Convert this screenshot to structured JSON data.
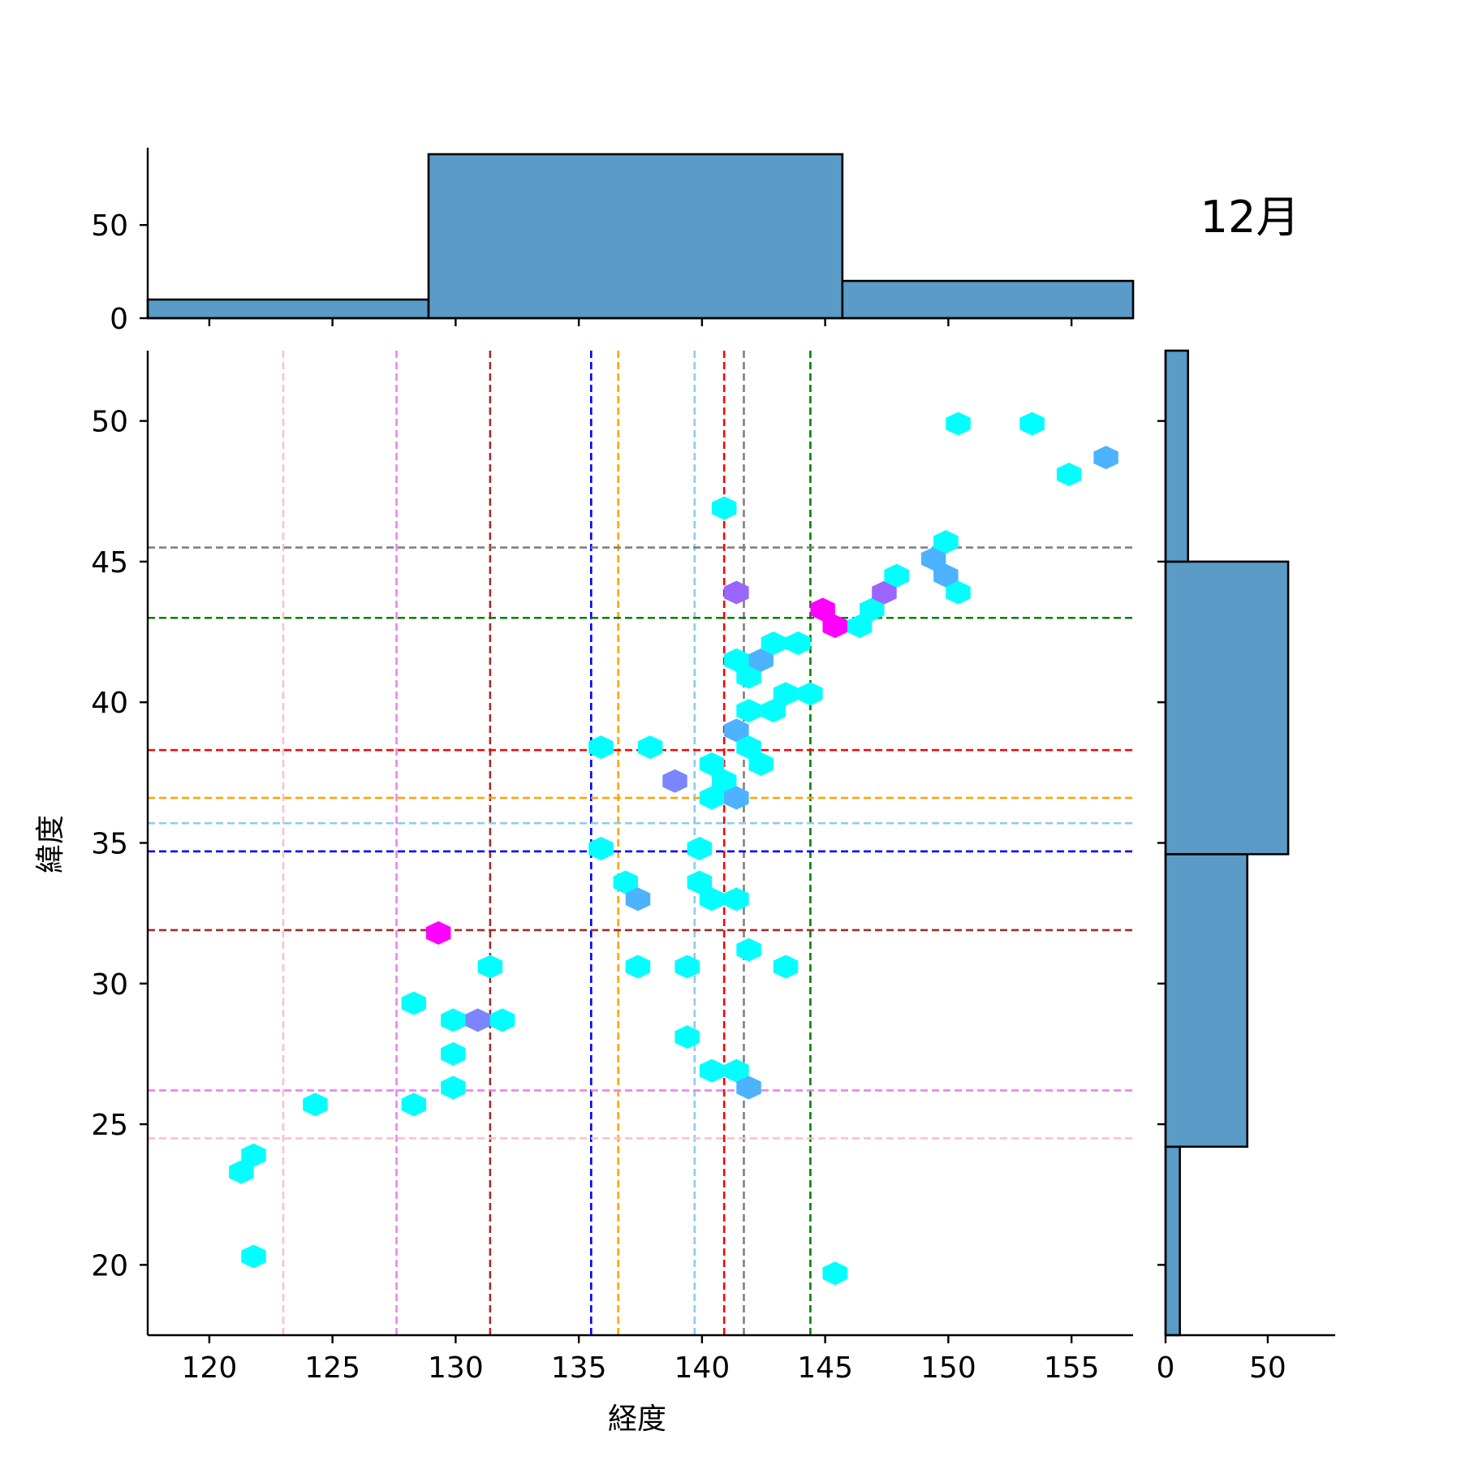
{
  "chart_data": {
    "type": "hexbin",
    "title": "12月",
    "xlabel": "経度",
    "ylabel": "緯度",
    "xlim": [
      117.5,
      157.5
    ],
    "ylim": [
      17.5,
      52.5
    ],
    "xticks": [
      120,
      125,
      130,
      135,
      140,
      145,
      150,
      155
    ],
    "yticks": [
      20,
      25,
      30,
      35,
      40,
      45,
      50
    ],
    "grid": false,
    "hex_colors": {
      "low": "#00ffff",
      "mid1": "#4db2ff",
      "mid2": "#7a85ff",
      "mid3": "#9a66ff",
      "high": "#ff00ff"
    },
    "hexbins": [
      {
        "x": 121.3,
        "y": 23.3,
        "level": "low"
      },
      {
        "x": 121.8,
        "y": 23.9,
        "level": "low"
      },
      {
        "x": 121.8,
        "y": 20.3,
        "level": "low"
      },
      {
        "x": 124.3,
        "y": 25.7,
        "level": "low"
      },
      {
        "x": 128.3,
        "y": 25.7,
        "level": "low"
      },
      {
        "x": 128.3,
        "y": 29.3,
        "level": "low"
      },
      {
        "x": 129.3,
        "y": 31.8,
        "level": "high"
      },
      {
        "x": 129.9,
        "y": 28.7,
        "level": "low"
      },
      {
        "x": 129.9,
        "y": 27.5,
        "level": "low"
      },
      {
        "x": 129.9,
        "y": 26.3,
        "level": "low"
      },
      {
        "x": 130.9,
        "y": 28.7,
        "level": "mid2"
      },
      {
        "x": 131.4,
        "y": 30.6,
        "level": "low"
      },
      {
        "x": 131.9,
        "y": 28.7,
        "level": "low"
      },
      {
        "x": 135.9,
        "y": 38.4,
        "level": "low"
      },
      {
        "x": 135.9,
        "y": 34.8,
        "level": "low"
      },
      {
        "x": 136.9,
        "y": 33.6,
        "level": "low"
      },
      {
        "x": 137.4,
        "y": 33.0,
        "level": "mid1"
      },
      {
        "x": 137.4,
        "y": 30.6,
        "level": "low"
      },
      {
        "x": 137.9,
        "y": 38.4,
        "level": "low"
      },
      {
        "x": 138.9,
        "y": 37.2,
        "level": "mid2"
      },
      {
        "x": 139.4,
        "y": 30.6,
        "level": "low"
      },
      {
        "x": 139.4,
        "y": 28.1,
        "level": "low"
      },
      {
        "x": 139.9,
        "y": 34.8,
        "level": "low"
      },
      {
        "x": 139.9,
        "y": 33.6,
        "level": "low"
      },
      {
        "x": 140.4,
        "y": 37.8,
        "level": "low"
      },
      {
        "x": 140.4,
        "y": 36.6,
        "level": "low"
      },
      {
        "x": 140.4,
        "y": 33.0,
        "level": "low"
      },
      {
        "x": 140.4,
        "y": 26.9,
        "level": "low"
      },
      {
        "x": 140.9,
        "y": 46.9,
        "level": "low"
      },
      {
        "x": 140.9,
        "y": 37.2,
        "level": "low"
      },
      {
        "x": 141.4,
        "y": 43.9,
        "level": "mid3"
      },
      {
        "x": 141.4,
        "y": 41.5,
        "level": "low"
      },
      {
        "x": 141.4,
        "y": 39.0,
        "level": "mid1"
      },
      {
        "x": 141.4,
        "y": 36.6,
        "level": "mid1"
      },
      {
        "x": 141.4,
        "y": 33.0,
        "level": "low"
      },
      {
        "x": 141.4,
        "y": 26.9,
        "level": "low"
      },
      {
        "x": 141.9,
        "y": 40.9,
        "level": "low"
      },
      {
        "x": 141.9,
        "y": 39.7,
        "level": "low"
      },
      {
        "x": 141.9,
        "y": 38.4,
        "level": "low"
      },
      {
        "x": 141.9,
        "y": 31.2,
        "level": "low"
      },
      {
        "x": 141.9,
        "y": 26.3,
        "level": "mid1"
      },
      {
        "x": 142.4,
        "y": 41.5,
        "level": "mid1"
      },
      {
        "x": 142.4,
        "y": 37.8,
        "level": "low"
      },
      {
        "x": 142.9,
        "y": 42.1,
        "level": "low"
      },
      {
        "x": 142.9,
        "y": 39.7,
        "level": "low"
      },
      {
        "x": 143.4,
        "y": 40.3,
        "level": "low"
      },
      {
        "x": 143.4,
        "y": 30.6,
        "level": "low"
      },
      {
        "x": 143.9,
        "y": 42.1,
        "level": "low"
      },
      {
        "x": 144.4,
        "y": 40.3,
        "level": "low"
      },
      {
        "x": 144.9,
        "y": 43.3,
        "level": "high"
      },
      {
        "x": 145.4,
        "y": 42.7,
        "level": "high"
      },
      {
        "x": 145.4,
        "y": 19.7,
        "level": "low"
      },
      {
        "x": 146.4,
        "y": 42.7,
        "level": "low"
      },
      {
        "x": 146.9,
        "y": 43.3,
        "level": "low"
      },
      {
        "x": 147.4,
        "y": 43.9,
        "level": "mid3"
      },
      {
        "x": 147.9,
        "y": 44.5,
        "level": "low"
      },
      {
        "x": 149.4,
        "y": 45.1,
        "level": "mid1"
      },
      {
        "x": 149.9,
        "y": 45.7,
        "level": "low"
      },
      {
        "x": 149.9,
        "y": 44.5,
        "level": "mid1"
      },
      {
        "x": 150.4,
        "y": 49.9,
        "level": "low"
      },
      {
        "x": 150.4,
        "y": 43.9,
        "level": "low"
      },
      {
        "x": 153.4,
        "y": 49.9,
        "level": "low"
      },
      {
        "x": 154.9,
        "y": 48.1,
        "level": "low"
      },
      {
        "x": 156.4,
        "y": 48.7,
        "level": "mid1"
      }
    ],
    "vlines": [
      {
        "x": 123.0,
        "color": "#ffc0cb"
      },
      {
        "x": 127.6,
        "color": "#ee82ee"
      },
      {
        "x": 131.4,
        "color": "#a52a2a"
      },
      {
        "x": 135.5,
        "color": "#0000ff"
      },
      {
        "x": 136.6,
        "color": "#ffa500"
      },
      {
        "x": 139.7,
        "color": "#87ceeb"
      },
      {
        "x": 140.9,
        "color": "#ff0000"
      },
      {
        "x": 141.7,
        "color": "#808080"
      },
      {
        "x": 144.4,
        "color": "#008000"
      }
    ],
    "hlines": [
      {
        "y": 45.5,
        "color": "#808080"
      },
      {
        "y": 43.0,
        "color": "#008000"
      },
      {
        "y": 38.3,
        "color": "#ff0000"
      },
      {
        "y": 36.6,
        "color": "#ffa500"
      },
      {
        "y": 35.7,
        "color": "#87ceeb"
      },
      {
        "y": 34.7,
        "color": "#0000ff"
      },
      {
        "y": 31.9,
        "color": "#a52a2a"
      },
      {
        "y": 26.2,
        "color": "#ee82ee"
      },
      {
        "y": 24.5,
        "color": "#ffc0cb"
      }
    ],
    "marginal_x": {
      "bar_color": "#5a9bc7",
      "ylim": [
        0,
        88
      ],
      "yticks": [
        0,
        50
      ],
      "bins": [
        {
          "x0": 117.5,
          "x1": 128.9,
          "count": 10
        },
        {
          "x0": 128.9,
          "x1": 145.7,
          "count": 88
        },
        {
          "x0": 145.7,
          "x1": 157.5,
          "count": 20
        }
      ]
    },
    "marginal_y": {
      "bar_color": "#5a9bc7",
      "xlim": [
        0,
        83
      ],
      "xticks": [
        0,
        50
      ],
      "bins": [
        {
          "y0": 17.5,
          "y1": 24.2,
          "count": 7
        },
        {
          "y0": 24.2,
          "y1": 34.6,
          "count": 40
        },
        {
          "y0": 34.6,
          "y1": 45.0,
          "count": 60
        },
        {
          "y0": 45.0,
          "y1": 52.5,
          "count": 11
        }
      ]
    }
  }
}
